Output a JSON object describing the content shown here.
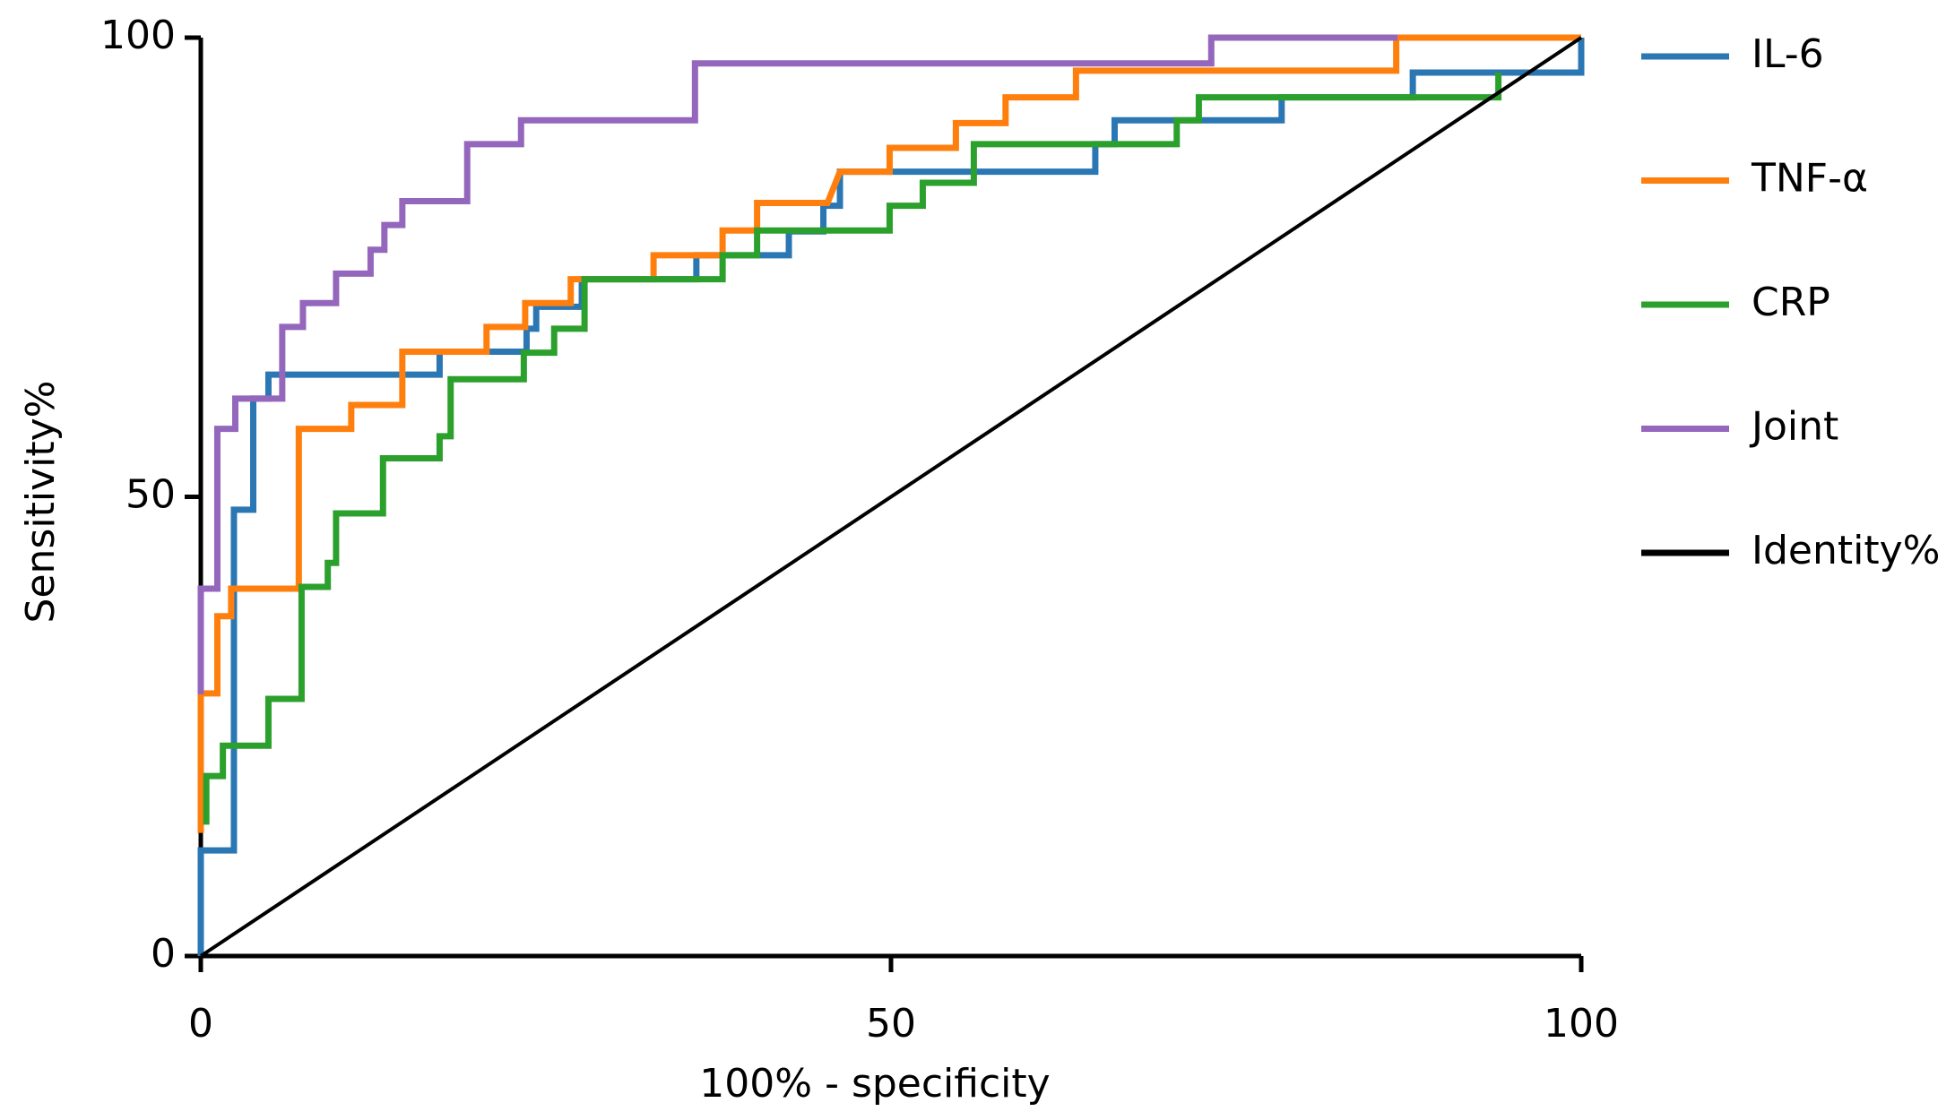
{
  "chart_data": {
    "type": "line",
    "xlabel": "100% - specificity",
    "ylabel": "Sensitivity%",
    "xlim": [
      0,
      100
    ],
    "ylim": [
      0,
      100
    ],
    "xticks": [
      0,
      50,
      100
    ],
    "yticks": [
      0,
      50,
      100
    ],
    "legend": "right",
    "series": [
      {
        "name": "IL-6",
        "color": "#2a77b4",
        "x": [
          0,
          0,
          2.4,
          2.4,
          3.8,
          3.8,
          4.9,
          4.9,
          17.3,
          17.3,
          23.6,
          23.6,
          24.3,
          24.3,
          27.6,
          27.6,
          35.9,
          35.9,
          42.6,
          42.6,
          45.1,
          45.1,
          46.3,
          46.3,
          64.8,
          64.8,
          66.2,
          66.2,
          78.3,
          78.3,
          87.8,
          87.8,
          100,
          100
        ],
        "values": [
          0,
          11.5,
          11.5,
          48.6,
          48.6,
          60.7,
          60.7,
          63.3,
          63.3,
          65.8,
          65.8,
          68.3,
          68.3,
          70.7,
          70.7,
          73.7,
          73.7,
          76.3,
          76.3,
          78.9,
          78.9,
          81.7,
          81.7,
          85.4,
          85.4,
          88.4,
          88.4,
          91,
          91,
          93.5,
          93.5,
          96.2,
          96.2,
          100
        ]
      },
      {
        "name": "TNF-α",
        "color": "#ff7f0e",
        "x": [
          0,
          0,
          1.2,
          1.2,
          2.2,
          2.2,
          7.1,
          7.1,
          10.9,
          10.9,
          14.6,
          14.6,
          20.7,
          20.7,
          23.5,
          23.5,
          26.8,
          26.8,
          32.8,
          32.8,
          37.8,
          37.8,
          40.3,
          40.3,
          45.4,
          46.3,
          49.9,
          49.9,
          54.7,
          54.7,
          58.3,
          58.3,
          63.4,
          63.4,
          86.6,
          86.6,
          100
        ],
        "values": [
          13.4,
          28.6,
          28.6,
          37,
          37,
          40,
          40,
          57.4,
          57.4,
          60,
          60,
          65.8,
          65.8,
          68.5,
          68.5,
          71.1,
          71.1,
          73.7,
          73.7,
          76.3,
          76.3,
          79,
          79,
          82,
          82,
          85.4,
          85.4,
          88,
          88,
          90.7,
          90.7,
          93.5,
          93.5,
          96.4,
          96.4,
          100,
          100
        ]
      },
      {
        "name": "CRP",
        "color": "#2ca02c",
        "x": [
          0.4,
          0.4,
          1.6,
          1.6,
          4.9,
          4.9,
          7.3,
          7.3,
          9.2,
          9.2,
          9.8,
          9.8,
          13.2,
          13.2,
          17.3,
          17.3,
          18.1,
          18.1,
          23.4,
          23.4,
          25.6,
          25.6,
          27.8,
          27.8,
          37.8,
          37.8,
          40.3,
          40.3,
          49.9,
          49.9,
          52.3,
          52.3,
          56,
          56,
          70.7,
          70.7,
          72.3,
          72.3,
          94,
          94
        ],
        "values": [
          14.3,
          19.6,
          19.6,
          22.9,
          22.9,
          28,
          28,
          40.2,
          40.2,
          42.8,
          42.8,
          48.2,
          48.2,
          54.2,
          54.2,
          56.6,
          56.6,
          62.8,
          62.8,
          65.7,
          65.7,
          68.3,
          68.3,
          73.7,
          73.7,
          76.3,
          76.3,
          79,
          79,
          81.7,
          81.7,
          84.2,
          84.2,
          88.4,
          88.4,
          91,
          91,
          93.5,
          93.5,
          96.2
        ]
      },
      {
        "name": "Joint",
        "color": "#9467bd",
        "x": [
          0,
          0,
          1.2,
          1.2,
          2.5,
          2.5,
          5.9,
          5.9,
          7.4,
          7.4,
          9.8,
          9.8,
          12.3,
          12.3,
          13.3,
          13.3,
          14.6,
          14.6,
          19.3,
          19.3,
          23.2,
          23.2,
          35.8,
          35.8,
          73.2,
          73.2,
          86.7
        ],
        "values": [
          28.5,
          40,
          40,
          57.4,
          57.4,
          60.7,
          60.7,
          68.5,
          68.5,
          71.1,
          71.1,
          74.3,
          74.3,
          76.9,
          76.9,
          79.6,
          79.6,
          82.2,
          82.2,
          88.4,
          88.4,
          91,
          91,
          97.2,
          97.2,
          100,
          100
        ]
      },
      {
        "name": "Identity%",
        "color": "#000000",
        "x": [
          0,
          100
        ],
        "values": [
          0,
          100
        ]
      }
    ]
  }
}
